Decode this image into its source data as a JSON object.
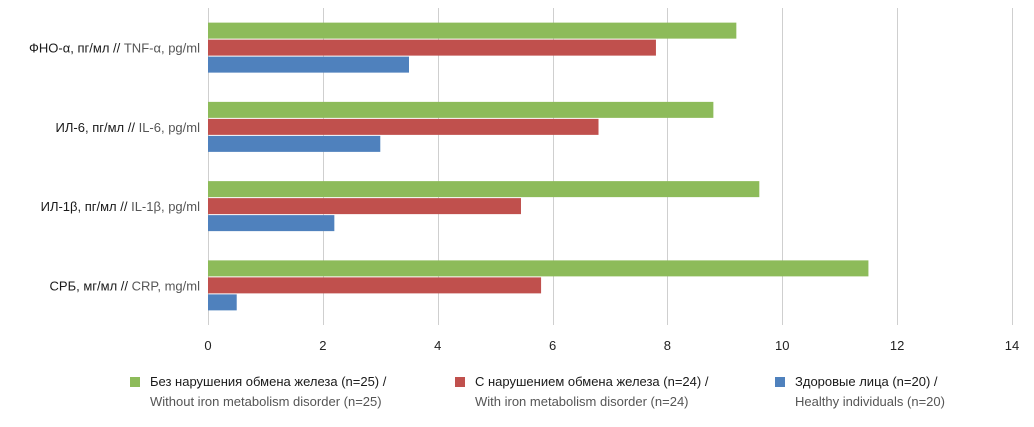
{
  "chart_data": {
    "type": "bar",
    "orientation": "horizontal",
    "categories": [
      {
        "ru": "ФНО-α, пг/мл //",
        "en": "TNF-α, pg/ml"
      },
      {
        "ru": "ИЛ-6, пг/мл //",
        "en": "IL-6, pg/ml"
      },
      {
        "ru": "ИЛ-1β, пг/мл //",
        "en": "IL-1β, pg/ml"
      },
      {
        "ru": "СРБ, мг/мл //",
        "en": "CRP, mg/ml"
      }
    ],
    "series": [
      {
        "name_ru": "Без нарушения обмена железа (n=25) /",
        "name_en": "Without iron metabolism disorder (n=25)",
        "color": "#8dbb5a",
        "values": [
          9.2,
          8.8,
          9.6,
          11.5
        ]
      },
      {
        "name_ru": "С нарушением обмена железа (n=24) /",
        "name_en": "With iron metabolism disorder (n=24)",
        "color": "#c0504d",
        "values": [
          7.8,
          6.8,
          5.45,
          5.8
        ]
      },
      {
        "name_ru": "Здоровые лица (n=20) /",
        "name_en": "Healthy individuals (n=20)",
        "color": "#4f81bd",
        "values": [
          3.5,
          3.0,
          2.2,
          0.5
        ]
      }
    ],
    "x_ticks": [
      "0",
      "2",
      "4",
      "6",
      "8",
      "10",
      "12",
      "14"
    ],
    "xlim": [
      0,
      14
    ],
    "grid": true,
    "legend_position": "bottom"
  }
}
